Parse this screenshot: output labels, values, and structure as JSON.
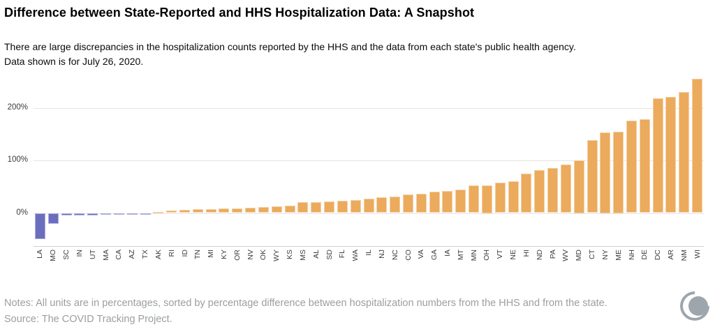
{
  "header": {
    "title": "Difference between State-Reported and HHS Hospitalization Data: A Snapshot",
    "subtitle_line1": "There are large discrepancies in the hospitalization counts reported by the HHS and the data from each state's public health agency.",
    "subtitle_line2": "Data shown is for July 26, 2020."
  },
  "chart_data": {
    "type": "bar",
    "title": "",
    "xlabel": "",
    "ylabel": "",
    "categories": [
      "LA",
      "MO",
      "SC",
      "IN",
      "UT",
      "MA",
      "CA",
      "AZ",
      "TX",
      "AK",
      "RI",
      "ID",
      "TN",
      "MI",
      "KY",
      "OR",
      "NV",
      "OK",
      "WY",
      "KS",
      "MS",
      "AL",
      "SD",
      "FL",
      "WA",
      "IL",
      "NJ",
      "NC",
      "CO",
      "VA",
      "GA",
      "IA",
      "MT",
      "MN",
      "OH",
      "VT",
      "NE",
      "HI",
      "ND",
      "PA",
      "WV",
      "MD",
      "CT",
      "NY",
      "ME",
      "NH",
      "DE",
      "DC",
      "AR",
      "NM",
      "WI"
    ],
    "values": [
      -50,
      -21,
      -5,
      -4,
      -4,
      -3,
      -2,
      -1,
      -0.5,
      1.5,
      5,
      6,
      7,
      7,
      8,
      9,
      10,
      11,
      12,
      14,
      20,
      21,
      22,
      23,
      24,
      27,
      30,
      31,
      35,
      36,
      40,
      42,
      44,
      52,
      53,
      58,
      60,
      75,
      82,
      85,
      92,
      100,
      139,
      153,
      155,
      175,
      178,
      218,
      221,
      230,
      255
    ],
    "units": "percent",
    "ylim": [
      -63,
      259
    ],
    "yticks": [
      0,
      100,
      200
    ],
    "ytick_labels": [
      "0%",
      "100%",
      "200%"
    ],
    "grid": true,
    "legend": "none",
    "positive_color": "#EBAA5C",
    "negative_color": "#6B6DBE"
  },
  "footer": {
    "notes": "Notes: All units are in percentages, sorted by percentage difference between hospitalization numbers from the HHS and from the state.",
    "source": "Source: The COVID Tracking Project.",
    "logo": "covid-tracking-project-logo"
  }
}
